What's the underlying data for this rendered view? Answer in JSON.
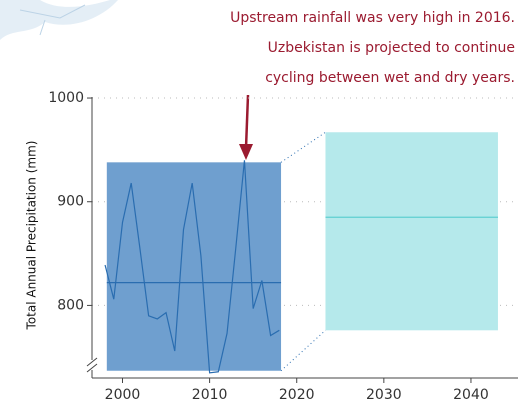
{
  "chart_data": {
    "type": "line",
    "y_label": "Total Annual Precipitation (mm)",
    "annotation": [
      "Upstream rainfall was very high in 2016.",
      "Uzbekistan is projected to continue",
      "cycling between wet and dry years."
    ],
    "annotation_color": "#9b1b30",
    "x": [
      1998,
      1999,
      2000,
      2001,
      2002,
      2003,
      2004,
      2005,
      2006,
      2007,
      2008,
      2009,
      2010,
      2011,
      2012,
      2013,
      2014,
      2015,
      2016,
      2017,
      2018
    ],
    "values": [
      839,
      806,
      880,
      918,
      855,
      790,
      787,
      793,
      756,
      873,
      918,
      848,
      735,
      736,
      773,
      855,
      940,
      797,
      824,
      771,
      776
    ],
    "color": "#2a6db0",
    "ranges": [
      {
        "x": [
          1998.2,
          2018.2
        ],
        "y": [
          737,
          938
        ],
        "mean": 822,
        "color": "#6f9fcf",
        "line_color": "#2a6db0"
      },
      {
        "x": [
          2023.3,
          2043.1
        ],
        "y": [
          776,
          967
        ],
        "mean": 885,
        "color": "#b5e9eb",
        "line_color": "#5fcfd0"
      }
    ],
    "xlim": [
      1996.5,
      2045.4
    ],
    "ylim": [
      730,
      1001
    ],
    "xticks": [
      2000,
      2010,
      2020,
      2030,
      2040
    ],
    "yticks": [
      800,
      900,
      1000
    ],
    "grid": true
  }
}
